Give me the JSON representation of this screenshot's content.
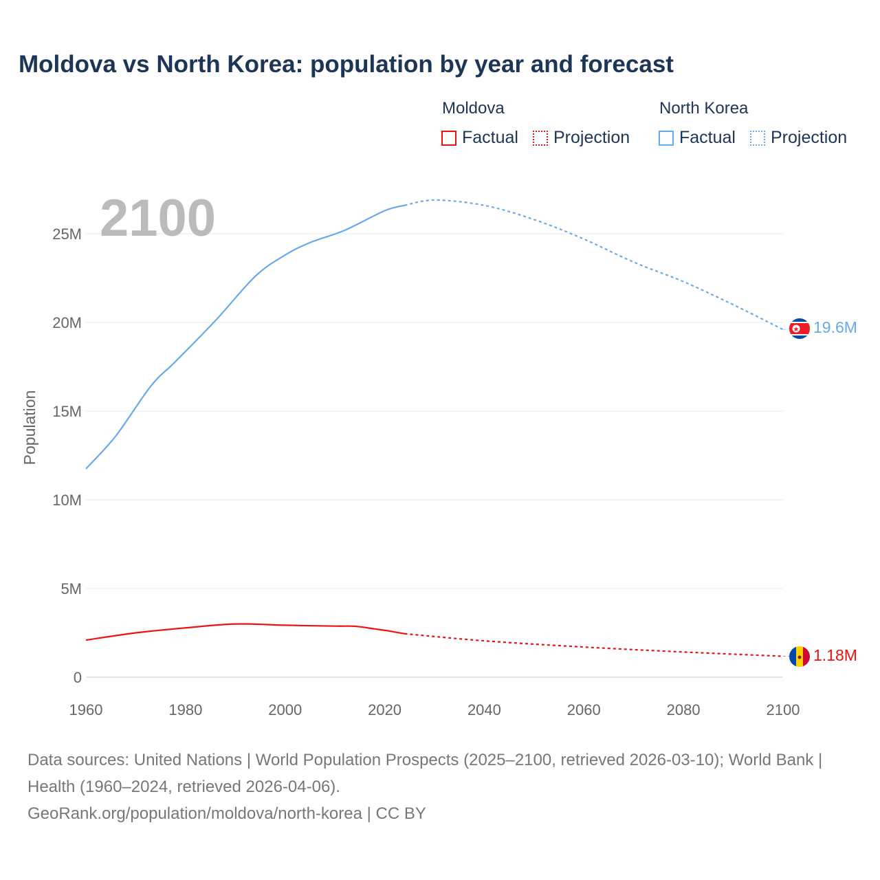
{
  "title": "Moldova vs North Korea: population by year and forecast",
  "legend": {
    "groups": [
      {
        "name": "Moldova",
        "color": "#ee1111",
        "factual": "Factual",
        "projection": "Projection"
      },
      {
        "name": "North Korea",
        "color": "#66aaee",
        "factual": "Factual",
        "projection": "Projection"
      }
    ]
  },
  "footer": {
    "sources": "Data sources: United Nations | World Population Prospects (2025–2100, retrieved 2026-03-10); World Bank | Health (1960–2024, retrieved 2026-04-06).",
    "credit": "GeoRank.org/population/moldova/north-korea | CC BY"
  },
  "chart_data": {
    "type": "line",
    "title": "Moldova vs North Korea: population by year and forecast",
    "year_label": "2100",
    "ylabel": "Population",
    "xlabel": "",
    "xlim": [
      1960,
      2100
    ],
    "ylim": [
      0,
      27000000
    ],
    "x_ticks": [
      1960,
      1980,
      2000,
      2020,
      2040,
      2060,
      2080,
      2100
    ],
    "y_ticks": [
      0,
      5000000,
      10000000,
      15000000,
      20000000,
      25000000
    ],
    "y_tick_labels": [
      "0",
      "5M",
      "10M",
      "15M",
      "20M",
      "25M"
    ],
    "projection_start": 2024,
    "series": [
      {
        "name": "North Korea",
        "color": "#66aaee",
        "end_label": "19.6M",
        "x": [
          1960,
          1966,
          1973,
          1978,
          1986,
          1994,
          2000,
          2005,
          2012,
          2020,
          2024,
          2030,
          2040,
          2050,
          2060,
          2070,
          2080,
          2090,
          2100
        ],
        "values": [
          11.75,
          13.6,
          16.4,
          17.8,
          20.1,
          22.6,
          23.8,
          24.5,
          25.2,
          26.3,
          26.6,
          26.9,
          26.6,
          25.8,
          24.7,
          23.4,
          22.3,
          21.0,
          19.6
        ]
      },
      {
        "name": "Moldova",
        "color": "#ee1111",
        "end_label": "1.18M",
        "x": [
          1960,
          1970,
          1980,
          1990,
          2000,
          2010,
          2014,
          2018,
          2021,
          2024,
          2040,
          2060,
          2080,
          2100
        ],
        "values": [
          2.09,
          2.5,
          2.78,
          3.0,
          2.93,
          2.88,
          2.87,
          2.72,
          2.6,
          2.45,
          2.05,
          1.7,
          1.42,
          1.18
        ]
      }
    ]
  }
}
